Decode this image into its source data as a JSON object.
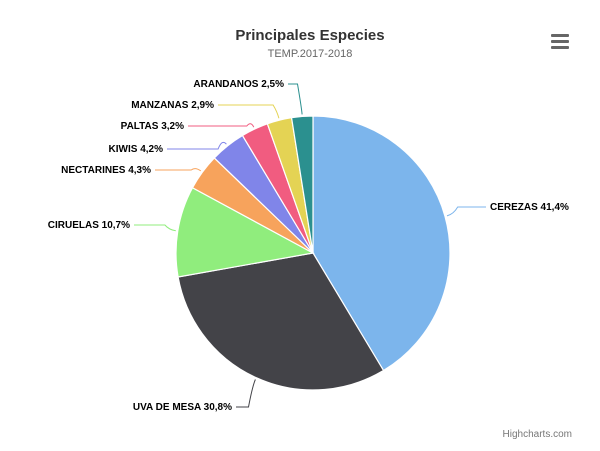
{
  "chart_data": {
    "type": "pie",
    "title": "Principales Especies",
    "subtitle": "TEMP.2017-2018",
    "slices": [
      {
        "name": "CEREZAS",
        "value": 41.4,
        "label": "CEREZAS 41,4%",
        "color": "#7cb5ec"
      },
      {
        "name": "UVA DE MESA",
        "value": 30.8,
        "label": "UVA DE MESA 30,8%",
        "color": "#434348"
      },
      {
        "name": "CIRUELAS",
        "value": 10.7,
        "label": "CIRUELAS 10,7%",
        "color": "#90ed7d"
      },
      {
        "name": "NECTARINES",
        "value": 4.3,
        "label": "NECTARINES 4,3%",
        "color": "#f7a35c"
      },
      {
        "name": "KIWIS",
        "value": 4.2,
        "label": "KIWIS 4,2%",
        "color": "#8085e9"
      },
      {
        "name": "PALTAS",
        "value": 3.2,
        "label": "PALTAS 3,2%",
        "color": "#f15c80"
      },
      {
        "name": "MANZANAS",
        "value": 2.9,
        "label": "MANZANAS 2,9%",
        "color": "#e4d354"
      },
      {
        "name": "ARANDANOS",
        "value": 2.5,
        "label": "ARANDANOS 2,5%",
        "color": "#2b908f"
      }
    ]
  },
  "menu_icon": "hamburger-menu-icon",
  "credits": "Highcharts.com"
}
